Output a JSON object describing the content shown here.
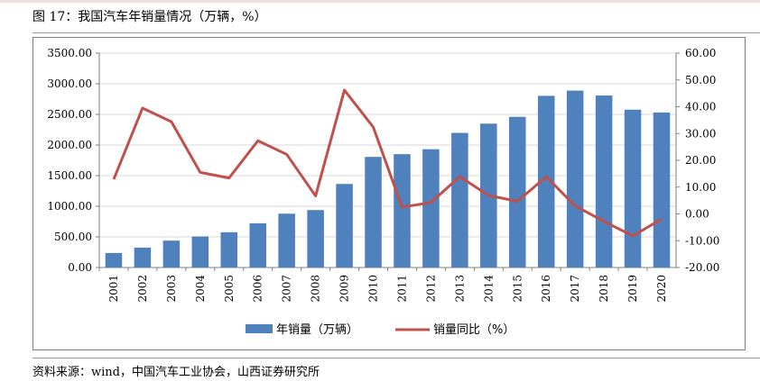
{
  "figure": {
    "title": "图 17：我国汽车年销量情况（万辆，%）",
    "source": "资料来源：wind，中国汽车工业协会，山西证券研究所"
  },
  "chart_data": {
    "type": "bar",
    "categories": [
      "2001",
      "2002",
      "2003",
      "2004",
      "2005",
      "2006",
      "2007",
      "2008",
      "2009",
      "2010",
      "2011",
      "2012",
      "2013",
      "2014",
      "2015",
      "2016",
      "2017",
      "2018",
      "2019",
      "2020"
    ],
    "series": [
      {
        "name": "年销量（万辆）",
        "type": "bar",
        "axis": "left",
        "color": "#4f81bd",
        "values": [
          237,
          325,
          439,
          507,
          576,
          722,
          879,
          938,
          1364,
          1806,
          1851,
          1931,
          2198,
          2349,
          2460,
          2803,
          2888,
          2808,
          2577,
          2531
        ]
      },
      {
        "name": "销量同比（%）",
        "type": "line",
        "axis": "right",
        "color": "#c0504d",
        "values": [
          12.9,
          39.5,
          34.4,
          15.5,
          13.4,
          27.3,
          22.2,
          6.7,
          46.2,
          32.4,
          2.5,
          4.3,
          13.9,
          6.9,
          4.7,
          13.9,
          3.0,
          -2.8,
          -8.2,
          -1.9
        ]
      }
    ],
    "y_left": {
      "ylim": [
        0,
        3500
      ],
      "ticks": [
        "0.00",
        "500.00",
        "1000.00",
        "1500.00",
        "2000.00",
        "2500.00",
        "3000.00",
        "3500.00"
      ]
    },
    "y_right": {
      "ylim": [
        -20,
        60
      ],
      "ticks": [
        "-20.00",
        "-10.00",
        "0.00",
        "10.00",
        "20.00",
        "30.00",
        "40.00",
        "50.00",
        "60.00"
      ]
    },
    "grid": true,
    "legend_position": "bottom"
  }
}
